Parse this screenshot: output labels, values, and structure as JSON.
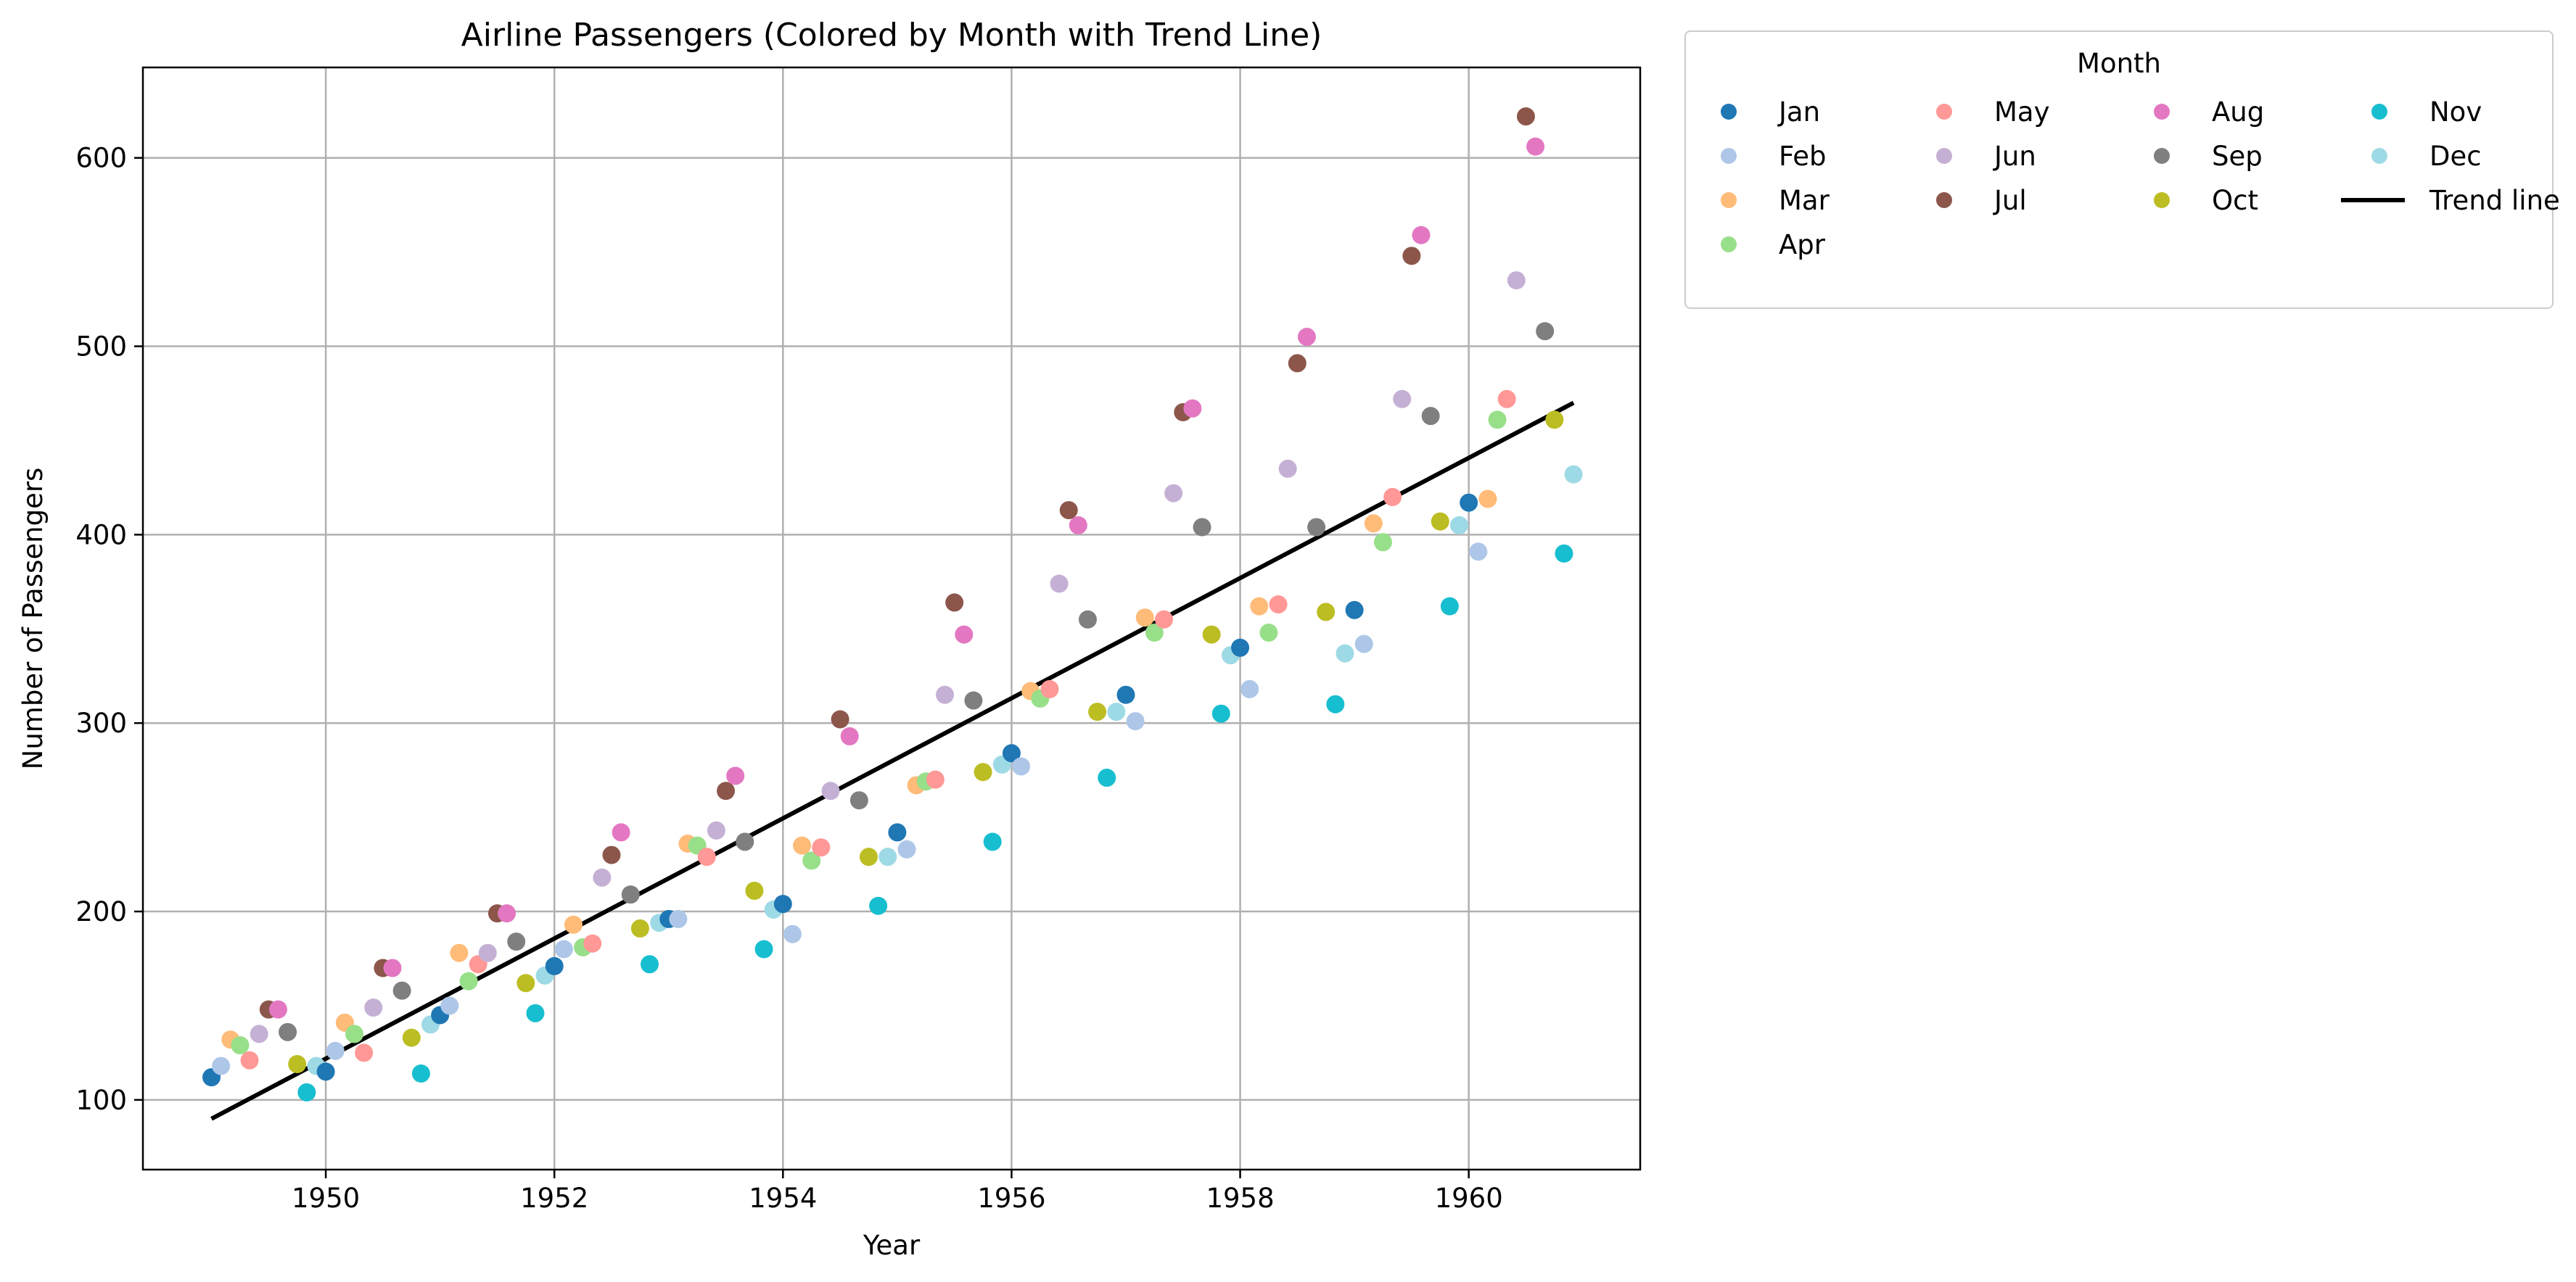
{
  "chart_data": {
    "type": "scatter",
    "title": "Airline Passengers (Colored by Month with Trend Line)",
    "xlabel": "Year",
    "ylabel": "Number of Passengers",
    "xlim": [
      1948.4,
      1961.5
    ],
    "ylim": [
      63,
      648
    ],
    "x_ticks": [
      "1950",
      "1952",
      "1954",
      "1956",
      "1958",
      "1960"
    ],
    "y_ticks": [
      "100",
      "200",
      "300",
      "400",
      "500",
      "600"
    ],
    "grid": true,
    "legend": {
      "title": "Month",
      "placement": "outside top-right",
      "columns": 4
    },
    "years": [
      1949,
      1950,
      1951,
      1952,
      1953,
      1954,
      1955,
      1956,
      1957,
      1958,
      1959,
      1960
    ],
    "series": [
      {
        "name": "Jan",
        "color": "#1f77b4",
        "values": [
          112,
          115,
          145,
          171,
          196,
          204,
          242,
          284,
          315,
          340,
          360,
          417
        ]
      },
      {
        "name": "Feb",
        "color": "#aec7e8",
        "values": [
          118,
          126,
          150,
          180,
          196,
          188,
          233,
          277,
          301,
          318,
          342,
          391
        ]
      },
      {
        "name": "Mar",
        "color": "#ffbb78",
        "values": [
          132,
          141,
          178,
          193,
          236,
          235,
          267,
          317,
          356,
          362,
          406,
          419
        ]
      },
      {
        "name": "Apr",
        "color": "#98df8a",
        "values": [
          129,
          135,
          163,
          181,
          235,
          227,
          269,
          313,
          348,
          348,
          396,
          461
        ]
      },
      {
        "name": "May",
        "color": "#ff9896",
        "values": [
          121,
          125,
          172,
          183,
          229,
          234,
          270,
          318,
          355,
          363,
          420,
          472
        ]
      },
      {
        "name": "Jun",
        "color": "#c5b0d5",
        "values": [
          135,
          149,
          178,
          218,
          243,
          264,
          315,
          374,
          422,
          435,
          472,
          535
        ]
      },
      {
        "name": "Jul",
        "color": "#8c564b",
        "values": [
          148,
          170,
          199,
          230,
          264,
          302,
          364,
          413,
          465,
          491,
          548,
          622
        ]
      },
      {
        "name": "Aug",
        "color": "#e377c2",
        "values": [
          148,
          170,
          199,
          242,
          272,
          293,
          347,
          405,
          467,
          505,
          559,
          606
        ]
      },
      {
        "name": "Sep",
        "color": "#7f7f7f",
        "values": [
          136,
          158,
          184,
          209,
          237,
          259,
          312,
          355,
          404,
          404,
          463,
          508
        ]
      },
      {
        "name": "Oct",
        "color": "#bcbd22",
        "values": [
          119,
          133,
          162,
          191,
          211,
          229,
          274,
          306,
          347,
          359,
          407,
          461
        ]
      },
      {
        "name": "Nov",
        "color": "#17becf",
        "values": [
          104,
          114,
          146,
          172,
          180,
          203,
          237,
          271,
          305,
          310,
          362,
          390
        ]
      },
      {
        "name": "Dec",
        "color": "#9edae5",
        "values": [
          118,
          140,
          166,
          194,
          201,
          229,
          278,
          306,
          336,
          337,
          405,
          432
        ]
      }
    ],
    "trend_line": {
      "name": "Trend line",
      "color": "#000000",
      "x": [
        1949.0,
        1960.917
      ],
      "y": [
        90,
        470
      ]
    }
  }
}
